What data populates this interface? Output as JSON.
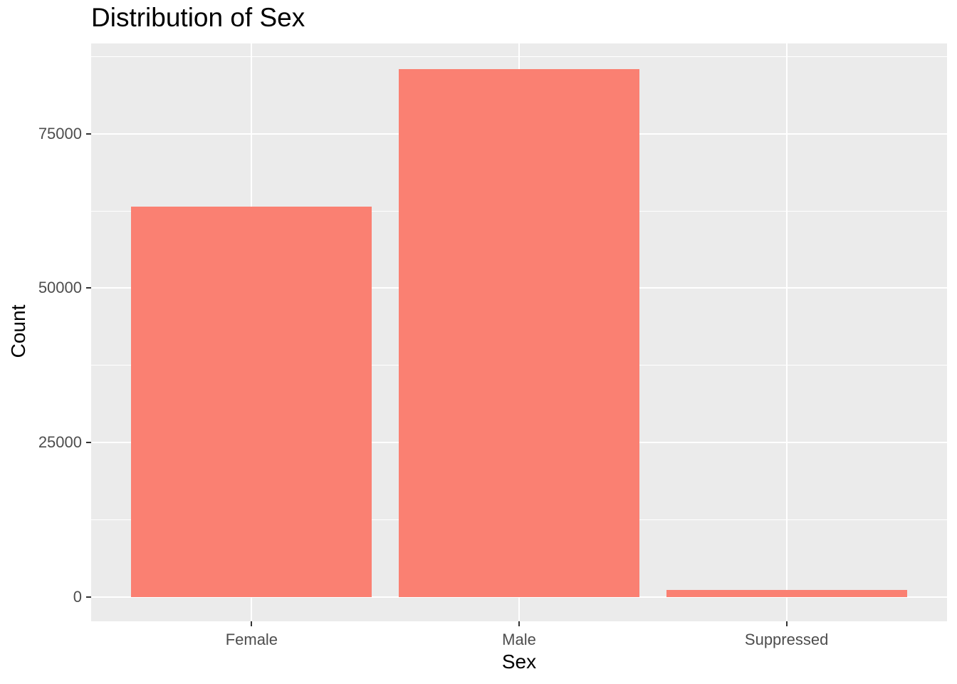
{
  "title": "Distribution of Sex",
  "colors": {
    "bar": "#FA8072",
    "panel_bg": "#EBEBEB",
    "gridline": "#FFFFFF",
    "tick_label_text": "#4D4D4D",
    "tick_mark": "#333333",
    "title_text": "#000000",
    "page_bg": "#FFFFFF"
  },
  "chart_data": {
    "type": "bar",
    "title": "Distribution of Sex",
    "xlabel": "Sex",
    "ylabel": "Count",
    "categories": [
      "Female",
      "Male",
      "Suppressed"
    ],
    "values": [
      63200,
      85400,
      1200
    ],
    "yticks": [
      0,
      25000,
      50000,
      75000
    ],
    "ytick_labels": [
      "0",
      "25000",
      "50000",
      "75000"
    ],
    "minor_yticks": [
      12500,
      37500,
      62500,
      87500
    ],
    "ylim": [
      -3900,
      89600
    ],
    "xlim": [
      0.4,
      3.6
    ],
    "bar_width_fraction": 0.28125,
    "grid": "on",
    "legend": "none",
    "style": "ggplot2-grey-theme"
  }
}
